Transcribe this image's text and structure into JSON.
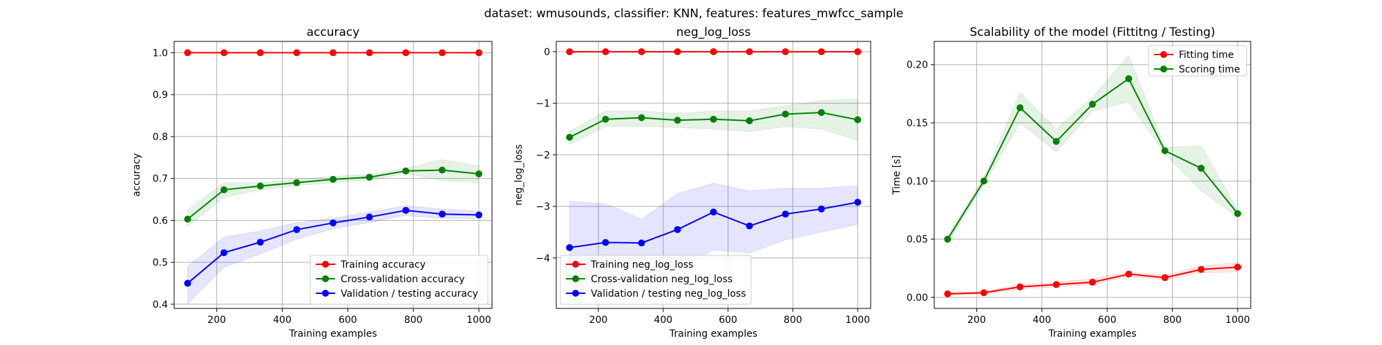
{
  "suptitle": "dataset: wmusounds, classifier: KNN, features: features_mwfcc_sample",
  "chart_data": [
    {
      "type": "line",
      "title": "accuracy",
      "xlabel": "Training examples",
      "ylabel": "accuracy",
      "xlim": [
        70,
        1040
      ],
      "ylim": [
        0.39,
        1.027
      ],
      "xticks": [
        200,
        400,
        600,
        800,
        1000
      ],
      "xtick_labels": [
        "200",
        "400",
        "600",
        "800",
        "1000"
      ],
      "yticks": [
        0.4,
        0.5,
        0.6,
        0.7,
        0.8,
        0.9,
        1.0
      ],
      "ytick_labels": [
        "0.4",
        "0.5",
        "0.6",
        "0.7",
        "0.8",
        "0.9",
        "1.0"
      ],
      "grid": true,
      "legend_position": "lower-right",
      "x": [
        111,
        222,
        333,
        444,
        555,
        666,
        777,
        888,
        1000
      ],
      "series": [
        {
          "name": "Training accuracy",
          "color": "#ff0000",
          "values": [
            1.0,
            1.0,
            1.0,
            1.0,
            1.0,
            1.0,
            1.0,
            1.0,
            1.0
          ],
          "band_low": [
            1.0,
            1.0,
            1.0,
            1.0,
            1.0,
            1.0,
            1.0,
            1.0,
            1.0
          ],
          "band_high": [
            1.0,
            1.0,
            1.0,
            1.0,
            1.0,
            1.0,
            1.0,
            1.0,
            1.0
          ]
        },
        {
          "name": "Cross-validation accuracy",
          "color": "#008000",
          "values": [
            0.603,
            0.673,
            0.682,
            0.69,
            0.698,
            0.703,
            0.718,
            0.72,
            0.711
          ],
          "band_low": [
            0.585,
            0.655,
            0.673,
            0.683,
            0.69,
            0.695,
            0.712,
            0.695,
            0.69
          ],
          "band_high": [
            0.625,
            0.69,
            0.69,
            0.698,
            0.705,
            0.71,
            0.725,
            0.745,
            0.73
          ]
        },
        {
          "name": "Validation / testing accuracy",
          "color": "#0000ff",
          "values": [
            0.45,
            0.523,
            0.548,
            0.578,
            0.594,
            0.608,
            0.624,
            0.615,
            0.613
          ],
          "band_low": [
            0.4,
            0.488,
            0.52,
            0.555,
            0.58,
            0.595,
            0.612,
            0.605,
            0.605
          ],
          "band_high": [
            0.49,
            0.56,
            0.575,
            0.595,
            0.605,
            0.62,
            0.635,
            0.627,
            0.622
          ]
        }
      ]
    },
    {
      "type": "line",
      "title": "neg_log_loss",
      "xlabel": "Training examples",
      "ylabel": "neg_log_loss",
      "xlim": [
        70,
        1040
      ],
      "ylim": [
        -4.98,
        0.2
      ],
      "xticks": [
        200,
        400,
        600,
        800,
        1000
      ],
      "xtick_labels": [
        "200",
        "400",
        "600",
        "800",
        "1000"
      ],
      "yticks": [
        -4,
        -3,
        -2,
        -1,
        0
      ],
      "ytick_labels": [
        "−4",
        "−3",
        "−2",
        "−1",
        "0"
      ],
      "grid": true,
      "legend_position": "lower-left",
      "x": [
        111,
        222,
        333,
        444,
        555,
        666,
        777,
        888,
        1000
      ],
      "series": [
        {
          "name": "Training neg_log_loss",
          "color": "#ff0000",
          "values": [
            0,
            0,
            0,
            0,
            0,
            0,
            0,
            0,
            0
          ],
          "band_low": [
            0,
            0,
            0,
            0,
            0,
            0,
            0,
            0,
            0
          ],
          "band_high": [
            0,
            0,
            0,
            0,
            0,
            0,
            0,
            0,
            0
          ]
        },
        {
          "name": "Cross-validation neg_log_loss",
          "color": "#008000",
          "values": [
            -1.66,
            -1.31,
            -1.28,
            -1.33,
            -1.31,
            -1.34,
            -1.21,
            -1.18,
            -1.32
          ],
          "band_low": [
            -1.8,
            -1.45,
            -1.45,
            -1.47,
            -1.5,
            -1.55,
            -1.45,
            -1.5,
            -1.72
          ],
          "band_high": [
            -1.55,
            -1.15,
            -1.15,
            -1.2,
            -1.15,
            -1.15,
            -1.05,
            -0.95,
            -0.92
          ]
        },
        {
          "name": "Validation / testing neg_log_loss",
          "color": "#0000ff",
          "values": [
            -3.8,
            -3.7,
            -3.71,
            -3.45,
            -3.11,
            -3.38,
            -3.15,
            -3.05,
            -2.92
          ],
          "band_low": [
            -4.75,
            -4.6,
            -4.55,
            -4.2,
            -3.85,
            -3.9,
            -3.65,
            -3.5,
            -3.35
          ],
          "band_high": [
            -2.9,
            -2.95,
            -3.25,
            -2.75,
            -2.55,
            -2.7,
            -2.65,
            -2.65,
            -2.6
          ]
        }
      ]
    },
    {
      "type": "line",
      "title": "Scalability of the model (Fittitng / Testing)",
      "xlabel": "Training examples",
      "ylabel": "Time [s]",
      "xlim": [
        70,
        1040
      ],
      "ylim": [
        -0.0095,
        0.22
      ],
      "xticks": [
        200,
        400,
        600,
        800,
        1000
      ],
      "xtick_labels": [
        "200",
        "400",
        "600",
        "800",
        "1000"
      ],
      "yticks": [
        0.0,
        0.05,
        0.1,
        0.15,
        0.2
      ],
      "ytick_labels": [
        "0.00",
        "0.05",
        "0.10",
        "0.15",
        "0.20"
      ],
      "grid": true,
      "legend_position": "top-right",
      "x": [
        111,
        222,
        333,
        444,
        555,
        666,
        777,
        888,
        1000
      ],
      "series": [
        {
          "name": "Fitting time",
          "color": "#ff0000",
          "values": [
            0.003,
            0.004,
            0.009,
            0.011,
            0.013,
            0.02,
            0.017,
            0.024,
            0.026
          ],
          "band_low": [
            0.002,
            0.003,
            0.007,
            0.009,
            0.011,
            0.018,
            0.015,
            0.021,
            0.022
          ],
          "band_high": [
            0.004,
            0.005,
            0.011,
            0.013,
            0.016,
            0.022,
            0.019,
            0.027,
            0.03
          ]
        },
        {
          "name": "Scoring time",
          "color": "#008000",
          "values": [
            0.05,
            0.1,
            0.163,
            0.134,
            0.166,
            0.188,
            0.126,
            0.111,
            0.072
          ],
          "band_low": [
            0.047,
            0.097,
            0.15,
            0.125,
            0.16,
            0.168,
            0.123,
            0.092,
            0.069
          ],
          "band_high": [
            0.053,
            0.103,
            0.176,
            0.145,
            0.172,
            0.208,
            0.129,
            0.13,
            0.075
          ]
        }
      ]
    }
  ]
}
